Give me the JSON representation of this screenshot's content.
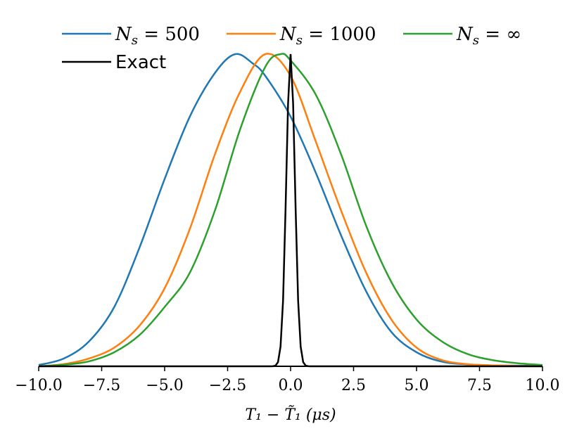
{
  "chart_data": {
    "type": "line",
    "xlabel": "T₁ − T̃₁ (μs)",
    "xlim": [
      -10,
      10
    ],
    "x_ticks": [
      "−10.0",
      "−7.5",
      "−5.0",
      "−2.5",
      "0.0",
      "2.5",
      "5.0",
      "7.5",
      "10.0"
    ],
    "x_tick_values": [
      -10,
      -7.5,
      -5,
      -2.5,
      0,
      2.5,
      5,
      7.5,
      10
    ],
    "y_axis_visible": false,
    "grid": false,
    "legend_position": "top",
    "series": [
      {
        "name": "N_s = 500",
        "label_main": "N",
        "label_sub": "s",
        "label_rest": " = 500",
        "color": "#1f77b4",
        "x": [
          -10,
          -9,
          -8,
          -7,
          -6,
          -5,
          -4,
          -3,
          -2.2,
          -1.5,
          -1,
          0,
          1,
          2,
          3,
          4,
          5,
          6,
          7,
          8,
          9,
          10
        ],
        "y": [
          0.004,
          0.025,
          0.08,
          0.19,
          0.38,
          0.6,
          0.8,
          0.94,
          1.0,
          0.97,
          0.93,
          0.8,
          0.62,
          0.42,
          0.24,
          0.11,
          0.045,
          0.015,
          0.006,
          0.003,
          0.002,
          0.001
        ]
      },
      {
        "name": "N_s = 1000",
        "label_main": "N",
        "label_sub": "s",
        "label_rest": " = 1000",
        "color": "#ff7f0e",
        "x": [
          -10,
          -9,
          -8,
          -7,
          -6,
          -5,
          -4,
          -3,
          -2,
          -1,
          0,
          1,
          2,
          3,
          4,
          5,
          6,
          7,
          8,
          9,
          10
        ],
        "y": [
          0.0,
          0.007,
          0.025,
          0.06,
          0.13,
          0.25,
          0.44,
          0.68,
          0.88,
          1.0,
          0.93,
          0.72,
          0.5,
          0.3,
          0.15,
          0.06,
          0.02,
          0.007,
          0.003,
          0.001,
          0.0
        ]
      },
      {
        "name": "N_s = ∞",
        "label_main": "N",
        "label_sub": "s",
        "label_rest": " = ∞",
        "color": "#2ca02c",
        "x": [
          -10,
          -9,
          -8,
          -7,
          -6,
          -5,
          -4,
          -3,
          -2,
          -1,
          -0.4,
          0,
          1,
          2,
          3,
          4,
          5,
          6,
          7,
          8,
          9,
          10
        ],
        "y": [
          0.0,
          0.005,
          0.016,
          0.045,
          0.1,
          0.19,
          0.3,
          0.5,
          0.76,
          0.96,
          1.0,
          0.98,
          0.87,
          0.68,
          0.45,
          0.27,
          0.15,
          0.08,
          0.04,
          0.02,
          0.01,
          0.004
        ]
      },
      {
        "name": "Exact",
        "label_rest": "Exact",
        "color": "#000000",
        "gaussian": {
          "mu": 0.0,
          "sigma": 0.17,
          "peak": 1.0
        }
      }
    ]
  }
}
